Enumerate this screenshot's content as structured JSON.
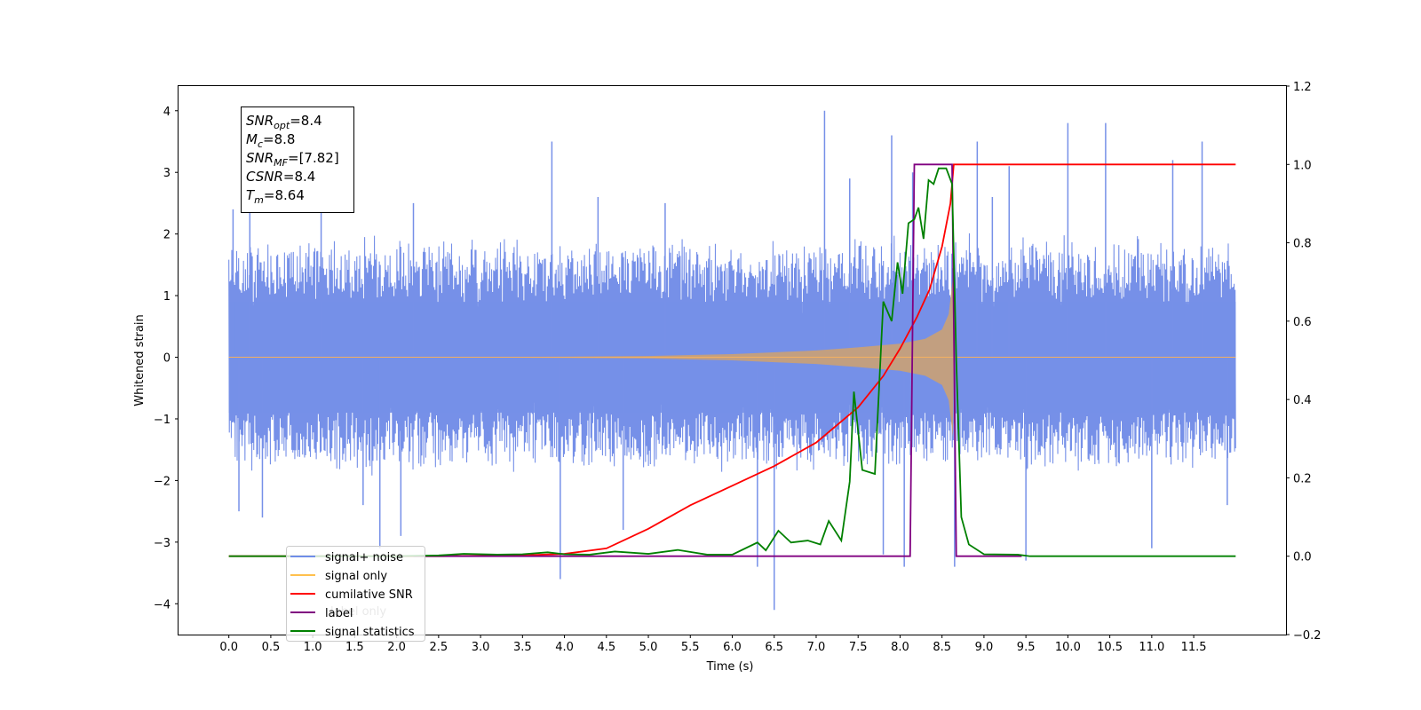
{
  "chart_data": {
    "type": "line",
    "xlabel": "Time (s)",
    "ylabel": "Whitened strain",
    "xlim": [
      -0.6,
      12.6
    ],
    "ylim": [
      -4.5,
      4.4
    ],
    "y2lim": [
      -0.2,
      1.2
    ],
    "x_ticks": [
      0.0,
      0.5,
      1.0,
      1.5,
      2.0,
      2.5,
      3.0,
      3.5,
      4.0,
      4.5,
      5.0,
      5.5,
      6.0,
      6.5,
      7.0,
      7.5,
      8.0,
      8.5,
      9.0,
      9.5,
      10.0,
      10.5,
      11.0,
      11.5
    ],
    "x_tick_labels": [
      "0.0",
      "0.5",
      "1.0",
      "1.5",
      "2.0",
      "2.5",
      "3.0",
      "3.5",
      "4.0",
      "4.5",
      "5.0",
      "5.5",
      "6.0",
      "6.5",
      "7.0",
      "7.5",
      "8.0",
      "8.5",
      "9.0",
      "9.5",
      "10.0",
      "10.5",
      "11.0",
      "11.5"
    ],
    "y_ticks": [
      -4,
      -3,
      -2,
      -1,
      0,
      1,
      2,
      3,
      4
    ],
    "y_tick_labels": [
      "−4",
      "−3",
      "−2",
      "−1",
      "0",
      "1",
      "2",
      "3",
      "4"
    ],
    "y2_ticks": [
      -0.2,
      0.0,
      0.2,
      0.4,
      0.6,
      0.8,
      1.0,
      1.2
    ],
    "y2_tick_labels": [
      "−0.2",
      "0.0",
      "0.2",
      "0.4",
      "0.6",
      "0.8",
      "1.0",
      "1.2"
    ],
    "noise": {
      "x_start": 0.0,
      "x_end": 12.0,
      "typical_band": [
        -1.7,
        1.8
      ],
      "spikes": [
        {
          "x": 0.05,
          "y": 2.4
        },
        {
          "x": 0.12,
          "y": -2.5
        },
        {
          "x": 0.25,
          "y": 2.7
        },
        {
          "x": 0.4,
          "y": -2.6
        },
        {
          "x": 1.1,
          "y": 2.6
        },
        {
          "x": 1.6,
          "y": -2.4
        },
        {
          "x": 1.8,
          "y": -3.1
        },
        {
          "x": 2.05,
          "y": -2.9
        },
        {
          "x": 2.2,
          "y": 2.5
        },
        {
          "x": 3.85,
          "y": 3.5
        },
        {
          "x": 3.95,
          "y": -3.6
        },
        {
          "x": 4.4,
          "y": 2.6
        },
        {
          "x": 4.7,
          "y": -2.8
        },
        {
          "x": 5.2,
          "y": 2.5
        },
        {
          "x": 6.3,
          "y": -3.4
        },
        {
          "x": 6.5,
          "y": -4.1
        },
        {
          "x": 7.1,
          "y": 4.0
        },
        {
          "x": 7.4,
          "y": 2.9
        },
        {
          "x": 7.9,
          "y": 3.6
        },
        {
          "x": 7.8,
          "y": -3.2
        },
        {
          "x": 8.05,
          "y": -3.4
        },
        {
          "x": 8.15,
          "y": 3.0
        },
        {
          "x": 8.65,
          "y": -3.4
        },
        {
          "x": 8.92,
          "y": 3.5
        },
        {
          "x": 9.1,
          "y": 2.6
        },
        {
          "x": 9.3,
          "y": 3.1
        },
        {
          "x": 9.5,
          "y": -3.3
        },
        {
          "x": 10.0,
          "y": 3.8
        },
        {
          "x": 10.45,
          "y": 3.8
        },
        {
          "x": 11.0,
          "y": -3.1
        },
        {
          "x": 11.25,
          "y": 3.2
        },
        {
          "x": 11.6,
          "y": 3.5
        },
        {
          "x": 11.9,
          "y": -2.4
        }
      ]
    },
    "signal_envelope": [
      {
        "x": 0.0,
        "y": 0.0
      },
      {
        "x": 3.0,
        "y": 0.005
      },
      {
        "x": 4.0,
        "y": 0.01
      },
      {
        "x": 5.0,
        "y": 0.02
      },
      {
        "x": 6.0,
        "y": 0.05
      },
      {
        "x": 6.5,
        "y": 0.08
      },
      {
        "x": 7.0,
        "y": 0.11
      },
      {
        "x": 7.5,
        "y": 0.16
      },
      {
        "x": 8.0,
        "y": 0.22
      },
      {
        "x": 8.3,
        "y": 0.3
      },
      {
        "x": 8.5,
        "y": 0.45
      },
      {
        "x": 8.58,
        "y": 0.7
      },
      {
        "x": 8.63,
        "y": 1.3
      },
      {
        "x": 8.64,
        "y": 0.0
      },
      {
        "x": 12.0,
        "y": 0.0
      }
    ],
    "series": [
      {
        "name": "cumilative SNR",
        "color": "#ff0000",
        "axis": "right",
        "points": [
          [
            0.0,
            0.0
          ],
          [
            2.5,
            0.0
          ],
          [
            3.5,
            0.002
          ],
          [
            4.0,
            0.006
          ],
          [
            4.5,
            0.02
          ],
          [
            5.0,
            0.07
          ],
          [
            5.5,
            0.13
          ],
          [
            6.0,
            0.18
          ],
          [
            6.5,
            0.23
          ],
          [
            7.0,
            0.29
          ],
          [
            7.5,
            0.38
          ],
          [
            7.8,
            0.46
          ],
          [
            8.0,
            0.53
          ],
          [
            8.2,
            0.61
          ],
          [
            8.35,
            0.68
          ],
          [
            8.5,
            0.79
          ],
          [
            8.6,
            0.9
          ],
          [
            8.64,
            1.0
          ],
          [
            9.0,
            1.0
          ],
          [
            10.0,
            1.0
          ],
          [
            11.0,
            1.0
          ],
          [
            12.0,
            1.0
          ]
        ]
      },
      {
        "name": "label",
        "color": "#800080",
        "axis": "right",
        "points": [
          [
            2.2,
            0.0
          ],
          [
            8.12,
            0.0
          ],
          [
            8.17,
            1.0
          ],
          [
            8.62,
            1.0
          ],
          [
            8.67,
            0.0
          ],
          [
            9.45,
            0.0
          ]
        ]
      },
      {
        "name": "signal statistics",
        "color": "#008000",
        "axis": "right",
        "points": [
          [
            0.0,
            0.0
          ],
          [
            2.0,
            0.0
          ],
          [
            2.5,
            0.002
          ],
          [
            2.8,
            0.006
          ],
          [
            3.2,
            0.004
          ],
          [
            3.5,
            0.005
          ],
          [
            3.8,
            0.01
          ],
          [
            4.0,
            0.005
          ],
          [
            4.3,
            0.004
          ],
          [
            4.6,
            0.012
          ],
          [
            5.0,
            0.006
          ],
          [
            5.35,
            0.016
          ],
          [
            5.7,
            0.004
          ],
          [
            6.0,
            0.004
          ],
          [
            6.3,
            0.035
          ],
          [
            6.4,
            0.015
          ],
          [
            6.55,
            0.065
          ],
          [
            6.7,
            0.035
          ],
          [
            6.9,
            0.04
          ],
          [
            7.05,
            0.03
          ],
          [
            7.15,
            0.09
          ],
          [
            7.3,
            0.04
          ],
          [
            7.4,
            0.19
          ],
          [
            7.45,
            0.42
          ],
          [
            7.55,
            0.22
          ],
          [
            7.7,
            0.21
          ],
          [
            7.8,
            0.65
          ],
          [
            7.9,
            0.6
          ],
          [
            7.97,
            0.75
          ],
          [
            8.03,
            0.67
          ],
          [
            8.1,
            0.85
          ],
          [
            8.17,
            0.86
          ],
          [
            8.22,
            0.89
          ],
          [
            8.28,
            0.81
          ],
          [
            8.34,
            0.96
          ],
          [
            8.4,
            0.95
          ],
          [
            8.46,
            0.99
          ],
          [
            8.55,
            0.99
          ],
          [
            8.62,
            0.95
          ],
          [
            8.67,
            0.5
          ],
          [
            8.73,
            0.1
          ],
          [
            8.82,
            0.03
          ],
          [
            9.0,
            0.005
          ],
          [
            9.4,
            0.004
          ],
          [
            9.55,
            0.0
          ],
          [
            12.0,
            0.0
          ]
        ]
      }
    ],
    "legend": {
      "position": "lower-left",
      "entries": [
        {
          "label": "signal+ noise",
          "color": "#6f8de8"
        },
        {
          "label": "signal only",
          "color": "#ffc04d"
        },
        {
          "label": "cumilative SNR",
          "color": "#ff0000"
        },
        {
          "label": "label",
          "color": "#800080"
        },
        {
          "label": "signal statistics",
          "color": "#008000"
        }
      ],
      "ghost_labels": [
        "label only"
      ]
    },
    "info_box": [
      {
        "main": "SNR",
        "sub": "opt",
        "value": "=8.4"
      },
      {
        "main": "M",
        "sub": "c",
        "value": "=8.8"
      },
      {
        "main": "SNR",
        "sub": "MF",
        "value": "=[7.82]"
      },
      {
        "main": "CSNR",
        "sub": "",
        "value": "=8.4"
      },
      {
        "main": "T",
        "sub": "m",
        "value": "=8.64"
      }
    ]
  }
}
